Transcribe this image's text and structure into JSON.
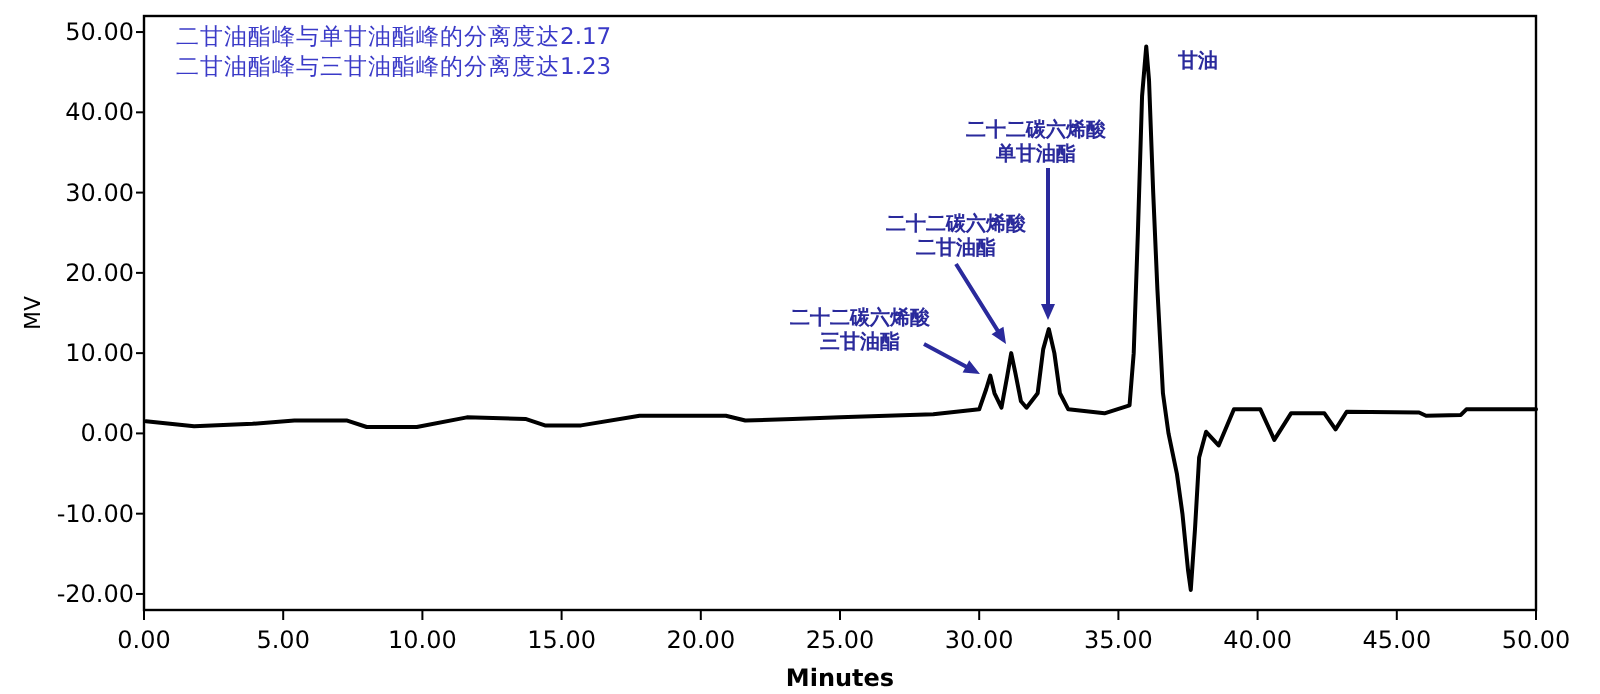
{
  "chart_data": {
    "type": "line",
    "xlabel": "Minutes",
    "ylabel": "MV",
    "xlim": [
      0,
      50
    ],
    "ylim": [
      -22,
      52
    ],
    "xticks": [
      {
        "value": 0,
        "label": "0.00"
      },
      {
        "value": 5,
        "label": "5.00"
      },
      {
        "value": 10,
        "label": "10.00"
      },
      {
        "value": 15,
        "label": "15.00"
      },
      {
        "value": 20,
        "label": "20.00"
      },
      {
        "value": 25,
        "label": "25.00"
      },
      {
        "value": 30,
        "label": "30.00"
      },
      {
        "value": 35,
        "label": "35.00"
      },
      {
        "value": 40,
        "label": "40.00"
      },
      {
        "value": 45,
        "label": "45.00"
      },
      {
        "value": 50,
        "label": "50.00"
      }
    ],
    "yticks": [
      {
        "value": -20,
        "label": "-20.00"
      },
      {
        "value": -10,
        "label": "-10.00"
      },
      {
        "value": 0,
        "label": "0.00"
      },
      {
        "value": 10,
        "label": "10.00"
      },
      {
        "value": 20,
        "label": "20.00"
      },
      {
        "value": 30,
        "label": "30.00"
      },
      {
        "value": 40,
        "label": "40.00"
      },
      {
        "value": 50,
        "label": "50.00"
      }
    ],
    "grid": false,
    "series": [
      {
        "color": "#000000",
        "x": [
          0.07,
          1.8,
          3.9,
          5.4,
          7.3,
          8.0,
          9.8,
          11.6,
          13.7,
          14.4,
          15.7,
          17.8,
          20.9,
          21.6,
          23.3,
          25.0,
          28.35,
          30.0,
          30.25,
          30.4,
          30.55,
          30.8,
          31.0,
          31.15,
          31.3,
          31.5,
          31.7,
          32.1,
          32.3,
          32.5,
          32.7,
          32.9,
          33.2,
          34.5,
          35.4,
          35.55,
          35.7,
          35.85,
          36.0,
          36.1,
          36.25,
          36.4,
          36.6,
          36.8,
          37.1,
          37.3,
          37.5,
          37.6,
          37.75,
          37.9,
          38.15,
          38.6,
          39.15,
          40.1,
          40.6,
          41.2,
          42.4,
          42.8,
          43.2,
          45.8,
          46.05,
          47.3,
          47.5,
          50.0
        ],
        "values": [
          1.5,
          0.9,
          1.2,
          1.6,
          1.6,
          0.8,
          0.8,
          2.0,
          1.8,
          1.0,
          1.0,
          2.2,
          2.2,
          1.6,
          1.8,
          2.0,
          2.4,
          3.0,
          5.5,
          7.2,
          5.0,
          3.2,
          7.0,
          10.0,
          7.5,
          4.0,
          3.2,
          5.0,
          10.5,
          13.0,
          10.0,
          5.0,
          3.0,
          2.5,
          3.5,
          10,
          25,
          42,
          48.2,
          44,
          30,
          18,
          5,
          0,
          -5,
          -10,
          -17,
          -19.5,
          -12,
          -3,
          0.2,
          -1.5,
          3.0,
          3.0,
          -0.8,
          2.5,
          2.5,
          0.5,
          2.7,
          2.6,
          2.2,
          2.3,
          3.0,
          3.0
        ]
      }
    ],
    "annotations": [
      "二甘油酯峰与单甘油酯峰的分离度达2.17",
      "二甘油酯峰与三甘油酯峰的分离度达1.23",
      "二十二碳六烯酸三甘油酯",
      "二十二碳六烯酸二甘油酯",
      "二十二碳六烯酸单甘油酯",
      {
        "text": "甘油",
        "x": 36.0,
        "y": 48.2
      }
    ]
  }
}
